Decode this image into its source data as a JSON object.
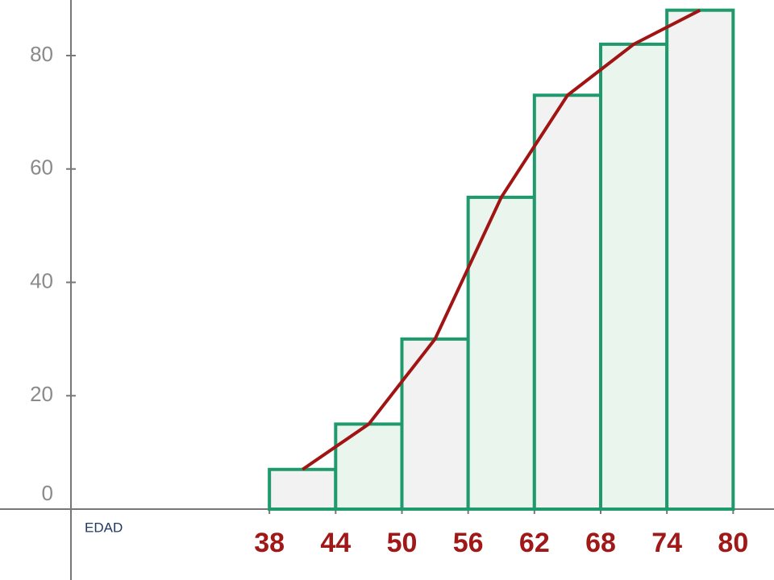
{
  "chart_data": {
    "type": "histogram",
    "x_label": "EDAD",
    "bins": [
      38,
      44,
      50,
      56,
      62,
      68,
      74,
      80
    ],
    "values": [
      7,
      15,
      30,
      55,
      73,
      82,
      88
    ],
    "colors": [
      "#f2f2f2",
      "#eaf5ee"
    ],
    "edge_color": "#1f9a6c",
    "line": {
      "x": [
        41,
        47,
        53,
        59,
        65,
        71,
        77
      ],
      "values": [
        7,
        15,
        30,
        55,
        73,
        82,
        88
      ],
      "color": "#a01414"
    },
    "xlim": [
      13.6,
      83.7
    ],
    "ylim": [
      -12.5,
      89.8
    ],
    "xticks": [
      38,
      44,
      50,
      56,
      62,
      68,
      74,
      80
    ],
    "yticks": [
      0,
      20,
      40,
      60,
      80
    ]
  }
}
